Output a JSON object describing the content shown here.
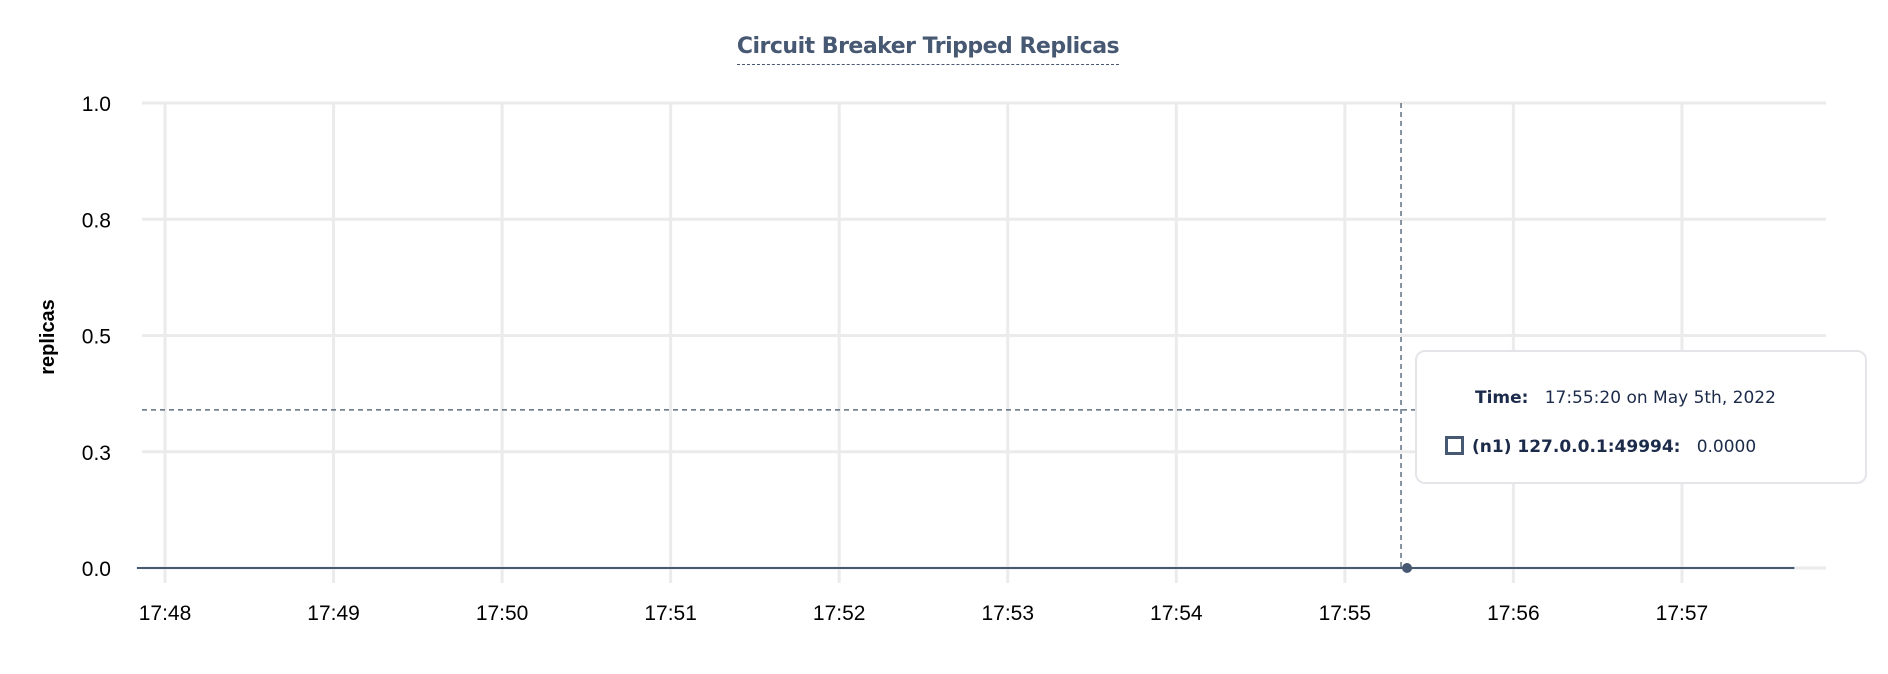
{
  "chart_data": {
    "type": "line",
    "title": "Circuit Breaker Tripped Replicas",
    "ylabel": "replicas",
    "xlabel": "",
    "ylim": [
      0,
      1
    ],
    "yticks": [
      {
        "v": 0,
        "label": "0.0"
      },
      {
        "v": 0.25,
        "label": "0.3"
      },
      {
        "v": 0.5,
        "label": "0.5"
      },
      {
        "v": 0.75,
        "label": "0.8"
      },
      {
        "v": 1,
        "label": "1.0"
      }
    ],
    "xticks": [
      "17:48",
      "17:49",
      "17:50",
      "17:51",
      "17:52",
      "17:53",
      "17:54",
      "17:55",
      "17:56",
      "17:57"
    ],
    "grid": true,
    "series": [
      {
        "name": "(n1) 127.0.0.1:49994",
        "color": "#475872",
        "x": [
          "17:47:50",
          "17:57:40"
        ],
        "y": [
          0,
          0
        ]
      }
    ],
    "hover": {
      "x": "17:55:20",
      "y": 0
    }
  },
  "tooltip": {
    "time_label": "Time:",
    "time_value": "17:55:20 on May 5th, 2022",
    "series_label": "(n1) 127.0.0.1:49994:",
    "series_value": "0.0000"
  }
}
